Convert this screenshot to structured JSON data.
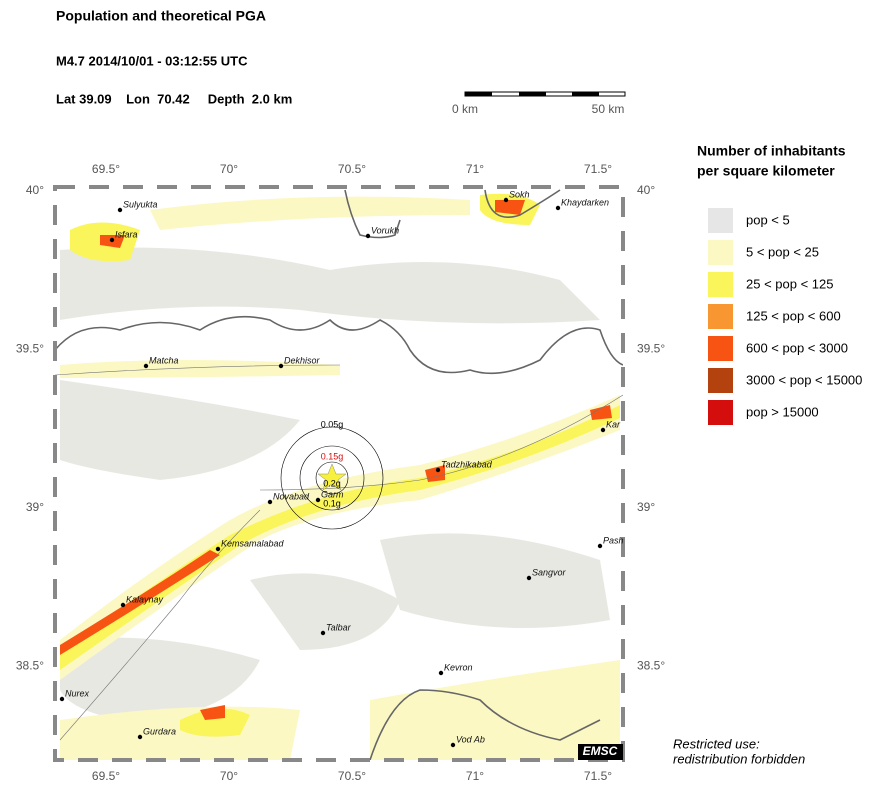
{
  "header": {
    "title": "Population and theoretical PGA",
    "event": "M4.7  2014/10/01 - 03:12:55 UTC",
    "location": "Lat 39.09    Lon  70.42     Depth  2.0 km"
  },
  "scale_bar": {
    "start": "0 km",
    "end": "50 km"
  },
  "map": {
    "lon_ticks": [
      {
        "value": 69.5,
        "label": "69.5°"
      },
      {
        "value": 70,
        "label": "70°"
      },
      {
        "value": 70.5,
        "label": "70.5°"
      },
      {
        "value": 71,
        "label": "71°"
      },
      {
        "value": 71.5,
        "label": "71.5°"
      }
    ],
    "lat_ticks": [
      {
        "value": 40,
        "label": "40°"
      },
      {
        "value": 39.5,
        "label": "39.5°"
      },
      {
        "value": 39,
        "label": "39°"
      },
      {
        "value": 38.5,
        "label": "38.5°"
      }
    ],
    "cities": [
      "Sulyukta",
      "Isfara",
      "Sokh",
      "Khaydarken",
      "Vorukh",
      "Matcha",
      "Dekhisor",
      "Tadzhikabad",
      "Novabad",
      "Garm",
      "Kemsamalabad",
      "Kalaynay",
      "Sangvor",
      "Talbar",
      "Kevron",
      "Nurex",
      "Gurdara",
      "Vod Ab",
      "Kar",
      "Pash"
    ],
    "pga_labels": [
      "0.05g",
      "0.15g",
      "0.2g",
      "0.1g"
    ],
    "credit": "EMSC"
  },
  "legend": {
    "title": [
      "Number of inhabitants",
      "per square kilometer"
    ],
    "items": [
      {
        "label": "pop < 5",
        "color": "#e6e6e6"
      },
      {
        "label": "5 < pop < 25",
        "color": "#fbf8c4"
      },
      {
        "label": "25 < pop < 125",
        "color": "#f9f55a"
      },
      {
        "label": "125 < pop < 600",
        "color": "#f89632"
      },
      {
        "label": "600 < pop < 3000",
        "color": "#f75414"
      },
      {
        "label": "3000 < pop < 15000",
        "color": "#b4420f"
      },
      {
        "label": "pop > 15000",
        "color": "#d40d0d"
      }
    ]
  },
  "note": [
    "Restricted use:",
    "redistribution forbidden"
  ]
}
